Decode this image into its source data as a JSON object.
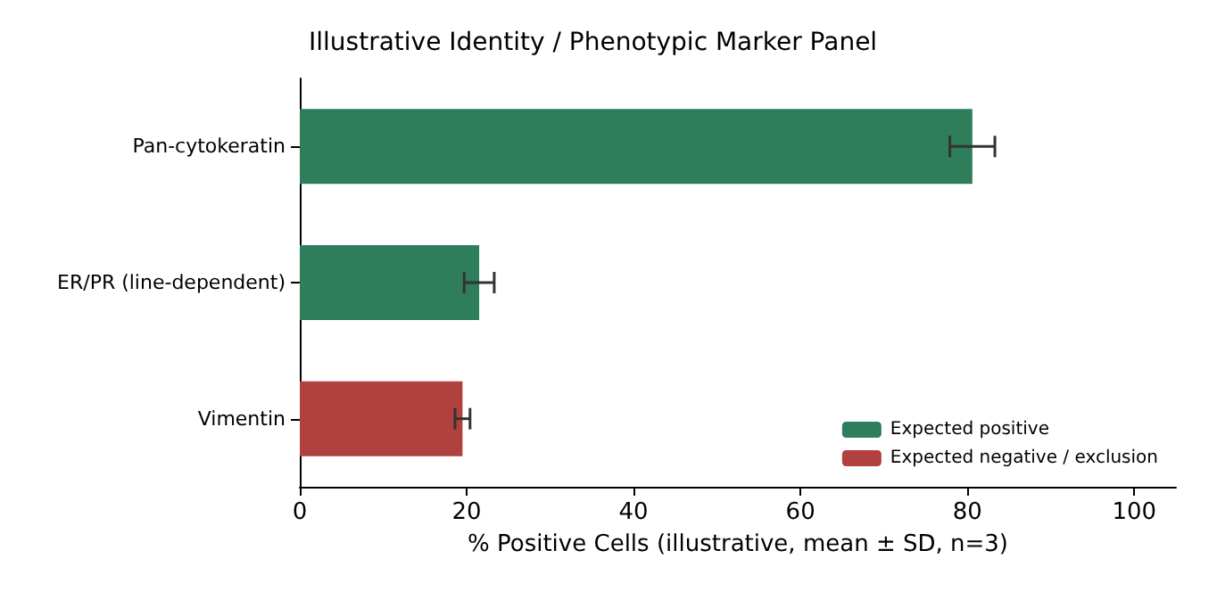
{
  "chart_data": {
    "type": "bar",
    "orientation": "horizontal",
    "title": "Illustrative Identity / Phenotypic Marker Panel",
    "xlabel": "% Positive Cells (illustrative, mean ± SD, n=3)",
    "categories": [
      "Pan-cytokeratin",
      "ER/PR (line-dependent)",
      "Vimentin"
    ],
    "series": [
      {
        "name": "Expected positive",
        "color": "#2e7d5b",
        "values": [
          80.6,
          21.5,
          null
        ],
        "errors": [
          2.7,
          1.8,
          null
        ]
      },
      {
        "name": "Expected negative / exclusion",
        "color": "#b0413e",
        "values": [
          null,
          null,
          19.5
        ],
        "errors": [
          null,
          null,
          0.9
        ]
      }
    ],
    "xlim": [
      0,
      105
    ],
    "xticks": [
      0,
      20,
      40,
      60,
      80,
      100
    ],
    "grid": false,
    "legend": "bottom right",
    "stacked": true
  }
}
